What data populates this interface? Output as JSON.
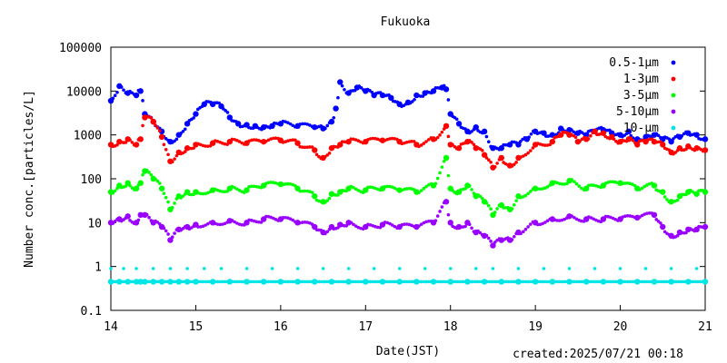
{
  "chart_data": {
    "type": "scatter",
    "title": "Fukuoka",
    "xlabel": "Date(JST)",
    "ylabel": "Number conc.[particles/L]",
    "y_scale": "log",
    "xlim": [
      14,
      21
    ],
    "ylim": [
      0.1,
      100000
    ],
    "x_ticks": [
      "14",
      "15",
      "16",
      "17",
      "18",
      "19",
      "20",
      "21"
    ],
    "y_ticks": [
      "0.1",
      "1",
      "10",
      "100",
      "1000",
      "10000",
      "100000"
    ],
    "legend_position": "top-right",
    "grid": false,
    "series": [
      {
        "name": "0.5-1μm",
        "color": "#0000ff",
        "x": [
          14.0,
          14.1,
          14.2,
          14.3,
          14.35,
          14.4,
          14.5,
          14.6,
          14.7,
          14.8,
          14.9,
          15.0,
          15.1,
          15.2,
          15.3,
          15.4,
          15.5,
          15.6,
          15.7,
          15.8,
          15.9,
          16.0,
          16.2,
          16.4,
          16.5,
          16.6,
          16.65,
          16.7,
          16.8,
          16.9,
          17.0,
          17.1,
          17.2,
          17.3,
          17.4,
          17.5,
          17.6,
          17.7,
          17.8,
          17.9,
          17.95,
          18.0,
          18.1,
          18.2,
          18.3,
          18.4,
          18.5,
          18.6,
          18.7,
          18.8,
          18.9,
          19.0,
          19.1,
          19.2,
          19.3,
          19.4,
          19.5,
          19.6,
          19.7,
          19.8,
          19.9,
          20.0,
          20.1,
          20.2,
          20.3,
          20.4,
          20.5,
          20.6,
          20.7,
          20.8,
          20.9,
          21.0
        ],
        "y": [
          6000,
          13000,
          9000,
          8000,
          10000,
          3000,
          2000,
          1200,
          700,
          1000,
          1800,
          3000,
          5000,
          5000,
          4500,
          2500,
          1800,
          1700,
          1600,
          1500,
          1600,
          1800,
          1600,
          1500,
          1400,
          2000,
          4000,
          16000,
          9000,
          12000,
          10000,
          8000,
          8000,
          7000,
          5000,
          5500,
          8000,
          9000,
          10000,
          12000,
          11000,
          3000,
          1800,
          1200,
          1500,
          1200,
          500,
          500,
          600,
          600,
          800,
          1200,
          1100,
          1000,
          1400,
          1300,
          1100,
          1000,
          1200,
          1300,
          1100,
          1000,
          1200,
          800,
          900,
          1000,
          800,
          700,
          900,
          1100,
          1000,
          800
        ]
      },
      {
        "name": "1-3μm",
        "color": "#ff0000",
        "x": [
          14.0,
          14.1,
          14.2,
          14.3,
          14.35,
          14.4,
          14.5,
          14.6,
          14.7,
          14.8,
          14.9,
          15.0,
          15.2,
          15.4,
          15.6,
          15.8,
          16.0,
          16.2,
          16.4,
          16.5,
          16.6,
          16.7,
          16.8,
          17.0,
          17.2,
          17.4,
          17.6,
          17.8,
          17.95,
          18.0,
          18.1,
          18.2,
          18.3,
          18.4,
          18.5,
          18.6,
          18.7,
          18.8,
          19.0,
          19.2,
          19.3,
          19.4,
          19.5,
          19.6,
          19.7,
          19.8,
          19.9,
          20.0,
          20.1,
          20.2,
          20.3,
          20.4,
          20.5,
          20.6,
          20.7,
          20.8,
          20.9,
          21.0
        ],
        "y": [
          600,
          700,
          800,
          600,
          800,
          2500,
          2000,
          900,
          250,
          400,
          500,
          600,
          650,
          700,
          650,
          700,
          750,
          650,
          450,
          300,
          500,
          600,
          700,
          700,
          750,
          700,
          600,
          800,
          1600,
          600,
          500,
          700,
          500,
          350,
          180,
          300,
          200,
          300,
          600,
          700,
          1000,
          1000,
          700,
          800,
          1200,
          1100,
          900,
          700,
          800,
          600,
          700,
          700,
          600,
          400,
          500,
          550,
          500,
          450
        ]
      },
      {
        "name": "3-5μm",
        "color": "#00ff00",
        "x": [
          14.0,
          14.1,
          14.2,
          14.3,
          14.35,
          14.4,
          14.5,
          14.6,
          14.7,
          14.8,
          14.9,
          15.0,
          15.2,
          15.4,
          15.6,
          15.8,
          16.0,
          16.2,
          16.4,
          16.5,
          16.6,
          16.7,
          16.8,
          17.0,
          17.2,
          17.4,
          17.6,
          17.8,
          17.95,
          18.0,
          18.1,
          18.2,
          18.3,
          18.4,
          18.5,
          18.6,
          18.7,
          18.8,
          19.0,
          19.2,
          19.4,
          19.6,
          19.8,
          20.0,
          20.2,
          20.4,
          20.5,
          20.6,
          20.7,
          20.8,
          20.9,
          21.0
        ],
        "y": [
          50,
          70,
          80,
          60,
          80,
          150,
          100,
          60,
          20,
          40,
          50,
          50,
          55,
          60,
          55,
          70,
          75,
          60,
          40,
          30,
          45,
          50,
          60,
          55,
          60,
          55,
          50,
          70,
          300,
          60,
          50,
          70,
          40,
          30,
          15,
          25,
          20,
          40,
          60,
          80,
          90,
          60,
          70,
          80,
          60,
          70,
          50,
          30,
          40,
          50,
          45,
          50
        ]
      },
      {
        "name": "5-10μm",
        "color": "#9900ff",
        "x": [
          14.0,
          14.1,
          14.2,
          14.3,
          14.35,
          14.4,
          14.5,
          14.6,
          14.7,
          14.8,
          14.9,
          15.0,
          15.2,
          15.4,
          15.6,
          15.8,
          16.0,
          16.2,
          16.4,
          16.5,
          16.6,
          16.7,
          16.8,
          17.0,
          17.2,
          17.4,
          17.6,
          17.8,
          17.95,
          18.0,
          18.1,
          18.2,
          18.3,
          18.4,
          18.5,
          18.6,
          18.7,
          18.8,
          19.0,
          19.2,
          19.4,
          19.6,
          19.8,
          20.0,
          20.2,
          20.4,
          20.5,
          20.6,
          20.7,
          20.8,
          20.9,
          21.0
        ],
        "y": [
          10,
          12,
          14,
          10,
          15,
          15,
          10,
          8,
          4,
          7,
          8,
          9,
          10,
          11,
          10,
          12,
          12,
          10,
          8,
          6,
          8,
          9,
          10,
          8,
          9,
          8,
          8,
          10,
          30,
          10,
          8,
          10,
          6,
          5,
          3,
          4,
          4,
          6,
          10,
          12,
          14,
          12,
          12,
          12,
          13,
          15,
          8,
          5,
          6,
          7,
          7,
          8
        ]
      },
      {
        "name": "10-μm",
        "color": "#00e5e5",
        "x": [
          14.0,
          14.1,
          14.2,
          14.3,
          14.35,
          14.4,
          14.5,
          14.6,
          14.7,
          14.8,
          14.9,
          15.0,
          15.2,
          15.4,
          15.6,
          15.8,
          16.0,
          16.2,
          16.4,
          16.6,
          16.8,
          17.0,
          17.2,
          17.4,
          17.6,
          17.8,
          18.0,
          18.2,
          18.4,
          18.6,
          18.8,
          19.0,
          19.2,
          19.4,
          19.6,
          19.8,
          20.0,
          20.2,
          20.4,
          20.6,
          20.8,
          21.0
        ],
        "y": [
          0.45,
          0.45,
          0.45,
          0.45,
          0.45,
          0.45,
          0.45,
          0.45,
          0.45,
          0.45,
          0.45,
          0.45,
          0.45,
          0.45,
          0.45,
          0.45,
          0.45,
          0.45,
          0.45,
          0.45,
          0.45,
          0.45,
          0.45,
          0.45,
          0.45,
          0.45,
          0.45,
          0.45,
          0.45,
          0.45,
          0.45,
          0.45,
          0.45,
          0.45,
          0.45,
          0.45,
          0.45,
          0.45,
          0.45,
          0.45,
          0.45,
          0.45
        ],
        "y_sparse_level": 0.9,
        "x_sparse": [
          14.0,
          14.15,
          14.3,
          14.5,
          14.7,
          14.9,
          15.1,
          15.3,
          15.6,
          15.9,
          16.2,
          16.5,
          16.8,
          17.1,
          17.4,
          17.7,
          18.0,
          18.3,
          18.5,
          18.8,
          19.1,
          19.4,
          19.7,
          20.0,
          20.3,
          20.6,
          20.9
        ]
      }
    ]
  },
  "footer": {
    "created": "created:2025/07/21 00:18"
  }
}
